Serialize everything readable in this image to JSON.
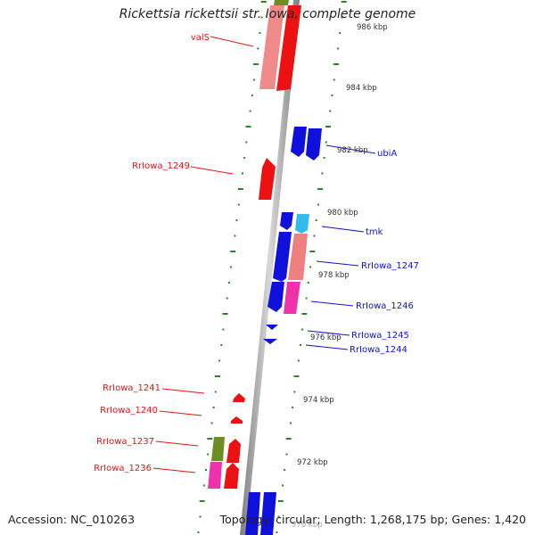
{
  "title": "Rickettsia rickettsii str. Iowa, complete genome",
  "footer": {
    "accession": "Accession: NC_010263",
    "summary": "Topology: circular; Length: 1,268,175 bp; Genes: 1,420"
  },
  "colors": {
    "reverse_strand": "#ee1111",
    "reverse_light": "#f08080",
    "forward_strand": "#1010dd",
    "forward_cyan": "#33bbee",
    "magenta": "#ee33aa",
    "olive": "#6b8e23",
    "tick": "#228b22",
    "backbone": "#9a9a9a"
  },
  "scale_labels": [
    "986 kbp",
    "984 kbp",
    "982 kbp",
    "980 kbp",
    "978 kbp",
    "976 kbp",
    "974 kbp",
    "972 kbp",
    "970 kbp"
  ],
  "reverse_labels": [
    "valS",
    "RrIowa_1249",
    "RrIowa_1241",
    "RrIowa_1240",
    "RrIowa_1237",
    "RrIowa_1236"
  ],
  "forward_labels": [
    "ubiA",
    "tmk",
    "RrIowa_1247",
    "RrIowa_1246",
    "RrIowa_1245",
    "RrIowa_1244"
  ]
}
